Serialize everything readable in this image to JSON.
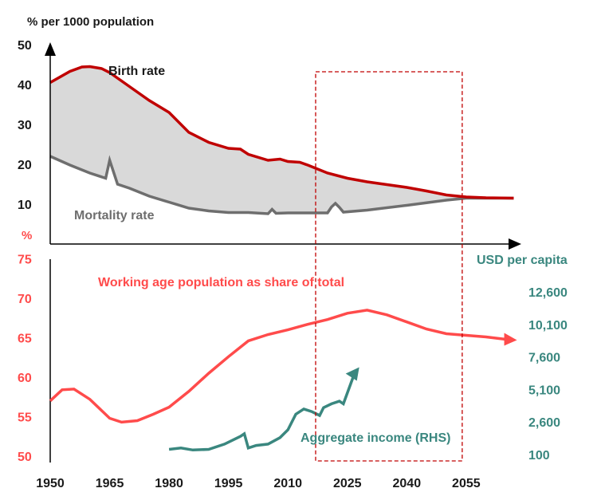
{
  "chart_data": [
    {
      "type": "area",
      "ylabel": "% per 1000 population",
      "ylim": [
        0,
        50
      ],
      "yticks": [
        "10",
        "20",
        "30",
        "40",
        "50"
      ],
      "xlim": [
        1950,
        2067
      ],
      "series": [
        {
          "name": "Birth rate",
          "color": "#c00000",
          "x": [
            1950,
            1955,
            1958,
            1960,
            1963,
            1965,
            1970,
            1975,
            1980,
            1985,
            1990,
            1995,
            1998,
            2000,
            2005,
            2008,
            2010,
            2013,
            2015,
            2020,
            2025,
            2030,
            2035,
            2040,
            2045,
            2050,
            2055,
            2060,
            2067
          ],
          "y": [
            40.5,
            43.3,
            44.4,
            44.5,
            44,
            43,
            39.5,
            36,
            33,
            28,
            25.5,
            24,
            23.8,
            22.5,
            21,
            21.3,
            20.7,
            20.5,
            19.8,
            17.8,
            16.5,
            15.6,
            14.9,
            14.2,
            13.3,
            12.3,
            11.8,
            11.6,
            11.5
          ]
        },
        {
          "name": "Mortality rate",
          "color": "#6e6e6e",
          "x": [
            1950,
            1955,
            1960,
            1964,
            1965,
            1967,
            1970,
            1975,
            1980,
            1985,
            1990,
            1995,
            2000,
            2005,
            2006,
            2007,
            2010,
            2015,
            2020,
            2021,
            2022,
            2023,
            2024,
            2030,
            2040,
            2050,
            2055,
            2067
          ],
          "y": [
            22,
            19.8,
            17.8,
            16.5,
            21,
            15,
            14,
            12,
            10.5,
            9,
            8.3,
            7.9,
            7.9,
            7.6,
            8.7,
            7.7,
            7.8,
            7.8,
            7.8,
            9.3,
            10.2,
            9.2,
            8,
            8.5,
            9.7,
            11,
            11.5,
            11.5
          ]
        }
      ],
      "fill_between": "#d9d9d9"
    },
    {
      "type": "line",
      "ylabel": "%",
      "ylim": [
        50,
        75
      ],
      "yticks": [
        "50",
        "55",
        "60",
        "65",
        "70",
        "75"
      ],
      "y2label": "USD per capita",
      "y2lim": [
        100,
        12600
      ],
      "y2ticks": [
        "100",
        "2,600",
        "5,100",
        "7,600",
        "10,100",
        "12,600"
      ],
      "xlim": [
        1950,
        2067
      ],
      "xticks": [
        "1950",
        "1965",
        "1980",
        "1995",
        "2010",
        "2025",
        "2040",
        "2055"
      ],
      "series": [
        {
          "name": "Working age population as share of total",
          "axis": "left",
          "color": "#ff4b4b",
          "x": [
            1950,
            1953,
            1956,
            1960,
            1965,
            1968,
            1972,
            1976,
            1980,
            1985,
            1990,
            1995,
            2000,
            2005,
            2010,
            2015,
            2020,
            2025,
            2030,
            2035,
            2040,
            2045,
            2050,
            2055,
            2060,
            2065
          ],
          "y": [
            57,
            58.4,
            58.5,
            57.2,
            54.8,
            54.3,
            54.5,
            55.3,
            56.2,
            58.2,
            60.5,
            62.6,
            64.6,
            65.4,
            66.0,
            66.7,
            67.3,
            68.1,
            68.5,
            67.9,
            67.0,
            66.1,
            65.5,
            65.3,
            65.1,
            64.8
          ]
        },
        {
          "name": "Aggregate income (RHS)",
          "axis": "right",
          "color": "#3a877f",
          "x": [
            1980,
            1983,
            1986,
            1990,
            1994,
            1998,
            1999,
            2000,
            2002,
            2005,
            2008,
            2010,
            2012,
            2014,
            2016,
            2018,
            2019,
            2021,
            2023,
            2024,
            2027
          ],
          "y": [
            500,
            600,
            450,
            500,
            900,
            1500,
            1700,
            600,
            800,
            900,
            1400,
            2000,
            3200,
            3600,
            3400,
            3100,
            3700,
            4000,
            4200,
            4000,
            6500
          ]
        }
      ],
      "annotation": {
        "type": "dashed-box",
        "color": "#c00000",
        "x_range": [
          2017,
          2054
        ]
      }
    }
  ]
}
